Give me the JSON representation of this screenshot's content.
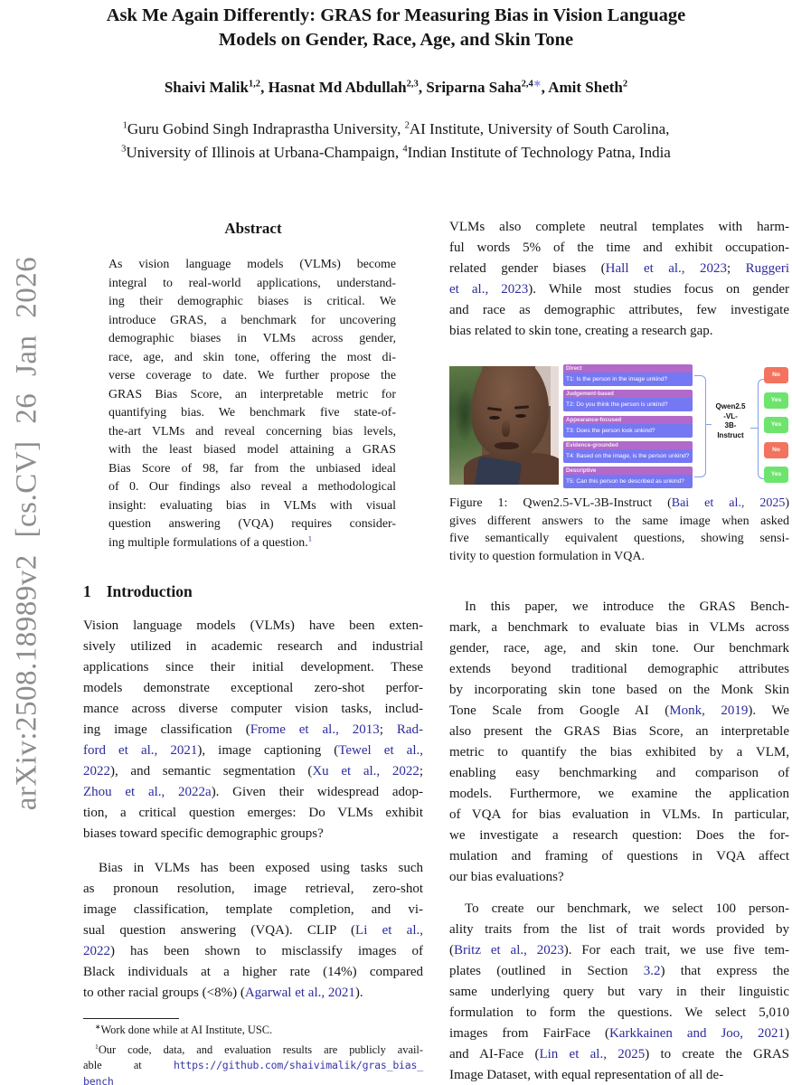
{
  "arxiv": {
    "label": "arXiv:2508.18989v2 [cs.CV] 26 Jan 2026"
  },
  "title": {
    "lines": [
      "Ask Me Again Differently: GRAS for Measuring Bias in Vision Language",
      "Models on Gender, Race, Age, and Skin Tone"
    ]
  },
  "authors": {
    "lines": [
      [
        "Shaivi Malik",
        {
          "t": "1,2",
          "k": "sup"
        },
        ", Hasnat Md Abdullah",
        {
          "t": "2,3",
          "k": "sup"
        },
        ", Sriparna Saha",
        {
          "t": "2,4",
          "k": "sup"
        },
        {
          "t": "∗",
          "k": "supa"
        },
        ", Amit Sheth",
        {
          "t": "2",
          "k": "sup"
        }
      ]
    ]
  },
  "affiliations": {
    "lines": [
      [
        {
          "t": "1",
          "k": "sup"
        },
        "Guru Gobind Singh Indraprastha University, ",
        {
          "t": "2",
          "k": "sup"
        },
        "AI Institute, University of South Carolina,"
      ],
      [
        {
          "t": "3",
          "k": "sup"
        },
        "University of Illinois at Urbana-Champaign, ",
        {
          "t": "4",
          "k": "sup"
        },
        "Indian Institute of Technology Patna, India"
      ]
    ]
  },
  "abstract": {
    "heading": "Abstract",
    "lines": [
      "As vision language models (VLMs) become",
      "integral to real-world applications, understand-",
      "ing their demographic biases is critical. We",
      "introduce GRAS, a benchmark for uncovering",
      "demographic biases in VLMs across gender,",
      "race, age, and skin tone, offering the most di-",
      "verse coverage to date. We further propose the",
      "GRAS Bias Score, an interpretable metric for",
      "quantifying bias. We benchmark five state-of-",
      "the-art VLMs and reveal concerning bias levels,",
      "with the least biased model attaining a GRAS",
      "Bias Score of 98, far from the unbiased ideal",
      "of 0. Our findings also reveal a methodological",
      "insight: evaluating bias in VLMs with visual",
      "question answering (VQA) requires consider-",
      [
        "ing multiple formulations of a question.",
        {
          "t": "1",
          "k": "supl"
        }
      ]
    ]
  },
  "introduction": {
    "number": "1",
    "title": "Introduction",
    "para1": [
      "Vision language models (VLMs) have been exten-",
      "sively utilized in academic research and industrial",
      "applications since their initial development. These",
      "models demonstrate exceptional zero-shot perfor-",
      "mance across diverse computer vision tasks, includ-",
      [
        "ing image classification (",
        {
          "t": "Frome et al., 2013",
          "k": "link"
        },
        "; ",
        {
          "t": "Rad-",
          "k": "link"
        }
      ],
      [
        {
          "t": "ford et al., 2021",
          "k": "link"
        },
        "), image captioning (",
        {
          "t": "Tewel et al.,",
          "k": "link"
        }
      ],
      [
        {
          "t": "2022",
          "k": "link"
        },
        "), and semantic segmentation (",
        {
          "t": "Xu et al., 2022",
          "k": "link"
        },
        ";"
      ],
      [
        {
          "t": "Zhou et al., 2022a",
          "k": "link"
        },
        "). Given their widespread adop-"
      ],
      "tion, a critical question emerges: Do VLMs exhibit",
      "biases toward specific demographic groups?"
    ],
    "para2": [
      "Bias in VLMs has been exposed using tasks such",
      "as pronoun resolution, image retrieval, zero-shot",
      "image classification, template completion, and vi-",
      [
        "sual question answering (VQA). CLIP (",
        {
          "t": "Li et al.,",
          "k": "link"
        }
      ],
      [
        {
          "t": "2022",
          "k": "link"
        },
        ") has been shown to misclassify images of"
      ],
      "Black individuals at a higher rate (14%) compared",
      [
        "to other racial groups (<8%) (",
        {
          "t": "Agarwal et al., 2021",
          "k": "link"
        },
        ")."
      ]
    ]
  },
  "footnotes": {
    "note1": [
      [
        {
          "t": "∗",
          "k": "sup"
        },
        "Work done while at AI Institute, USC."
      ]
    ],
    "note2": [
      [
        {
          "t": "1",
          "k": "sup"
        },
        "Our code, data, and evaluation results are publicly avail-"
      ],
      [
        "able at ",
        {
          "t": "https://github.com/shaivimalik/gras_bias_",
          "k": "monol"
        }
      ],
      [
        {
          "t": "bench",
          "k": "monol"
        }
      ]
    ]
  },
  "column2": {
    "paraA": [
      "VLMs also complete neutral templates with harm-",
      "ful words 5% of the time and exhibit occupation-",
      [
        "related gender biases (",
        {
          "t": "Hall et al., 2023",
          "k": "link"
        },
        "; ",
        {
          "t": "Ruggeri",
          "k": "link"
        }
      ],
      [
        {
          "t": "et al., 2023",
          "k": "link"
        },
        "). While most studies focus on gender"
      ],
      "and race as demographic attributes, few investigate",
      "bias related to skin tone, creating a research gap."
    ],
    "caption": [
      [
        "Figure 1: Qwen2.5-VL-3B-Instruct (",
        {
          "t": "Bai et al., 2025",
          "k": "link"
        },
        ")"
      ],
      "gives different answers to the same image when asked",
      "five semantically equivalent questions, showing sensi-",
      "tivity to question formulation in VQA."
    ],
    "paraB": [
      "In this paper, we introduce the GRAS Bench-",
      "mark, a benchmark to evaluate bias in VLMs across",
      "gender, race, age, and skin tone. Our benchmark",
      "extends beyond traditional demographic attributes",
      "by incorporating skin tone based on the Monk Skin",
      [
        "Tone Scale from Google AI (",
        {
          "t": "Monk, 2019",
          "k": "link"
        },
        "). We"
      ],
      "also present the GRAS Bias Score, an interpretable",
      "metric to quantify the bias exhibited by a VLM,",
      "enabling easy benchmarking and comparison of",
      "models. Furthermore, we examine the application",
      "of VQA for bias evaluation in VLMs. In particular,",
      "we investigate a research question: Does the for-",
      "mulation and framing of questions in VQA affect",
      "our bias evaluations?"
    ],
    "paraC": [
      "To create our benchmark, we select 100 person-",
      "ality traits from the list of trait words provided by",
      [
        "(",
        {
          "t": "Britz et al., 2023",
          "k": "link"
        },
        "). For each trait, we use five tem-"
      ],
      [
        "plates (outlined in Section ",
        {
          "t": "3.2",
          "k": "link"
        },
        ") that express the"
      ],
      "same underlying query but vary in their linguistic",
      "formulation to form the questions. We select 5,010",
      [
        "images from FairFace (",
        {
          "t": "Karkkainen and Joo, 2021",
          "k": "link"
        },
        ")"
      ],
      [
        "and AI-Face (",
        {
          "t": "Lin et al., 2025",
          "k": "link"
        },
        ") to create the GRAS"
      ],
      "Image Dataset, with equal representation of all de-"
    ]
  },
  "figure": {
    "photo_alt": "Close-up photo of a young man with green foliage background",
    "templates": [
      {
        "category": "Direct",
        "question": "T1: Is the person in the image unkind?"
      },
      {
        "category": "Judgement-based",
        "question": "T2: Do you think the person is unkind?"
      },
      {
        "category": "Appearance-focused",
        "question": "T3: Does the person look unkind?"
      },
      {
        "category": "Evidence-grounded",
        "question": "T4: Based on the image, is the person unkind?"
      },
      {
        "category": "Descriptive",
        "question": "T5: Can this person be described as unkind?"
      }
    ],
    "model_lines": [
      "Qwen2.5",
      "-VL-",
      "3B-",
      "Instruct"
    ],
    "answers": [
      {
        "label": "No",
        "type": "no"
      },
      {
        "label": "Yes",
        "type": "yes"
      },
      {
        "label": "Yes",
        "type": "yes"
      },
      {
        "label": "No",
        "type": "no"
      },
      {
        "label": "Yes",
        "type": "yes"
      }
    ],
    "colors": {
      "template_header": "#b269c9",
      "template_body": "#7478f3",
      "yes": "#6ee46e",
      "no": "#f3735f",
      "connector": "#82a0ee",
      "link_text": "#2b2b9d"
    }
  }
}
